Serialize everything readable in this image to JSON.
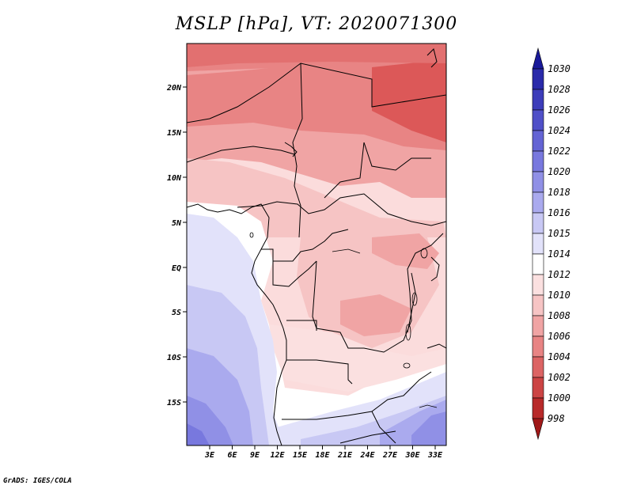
{
  "title": "MSLP [hPa], VT: 2020071300",
  "credit": "GrADS: IGES/COLA",
  "map": {
    "variable": "MSLP",
    "units": "hPa",
    "valid_time": "2020071300",
    "lat_labels": [
      "20N",
      "15N",
      "10N",
      "5N",
      "EQ",
      "5S",
      "10S",
      "15S"
    ],
    "lon_labels": [
      "3E",
      "6E",
      "9E",
      "12E",
      "15E",
      "18E",
      "21E",
      "24E",
      "27E",
      "30E",
      "33E"
    ]
  },
  "colorbar": {
    "labels": [
      "1030",
      "1028",
      "1026",
      "1024",
      "1022",
      "1020",
      "1018",
      "1016",
      "1015",
      "1014",
      "1012",
      "1010",
      "1008",
      "1006",
      "1004",
      "1002",
      "1000",
      "998"
    ],
    "colors": [
      "#1a1a9a",
      "#2a2aaa",
      "#3d3dba",
      "#5050c8",
      "#6464d4",
      "#7878de",
      "#9090e6",
      "#aaaaee",
      "#c8c8f4",
      "#e2e2fa",
      "#ffffff",
      "#fbe0e0",
      "#f6c4c4",
      "#f0a4a4",
      "#e88484",
      "#dc6464",
      "#cc4444",
      "#b82a2a",
      "#a01818"
    ]
  }
}
